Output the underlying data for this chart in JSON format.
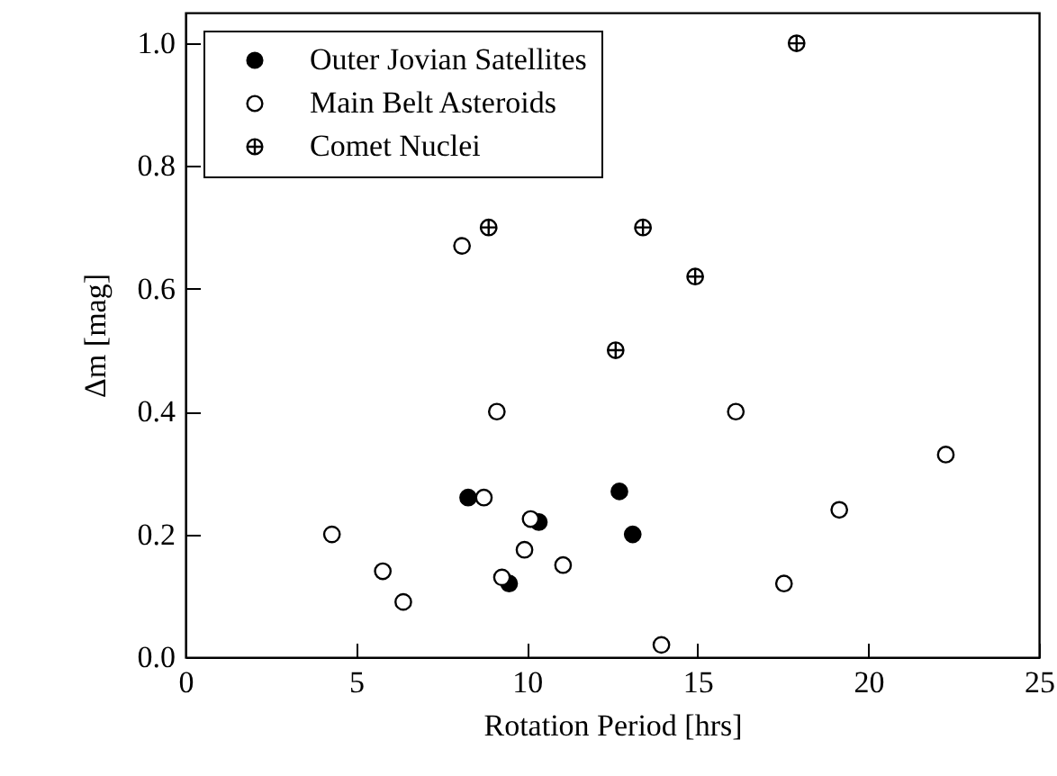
{
  "chart_data": {
    "type": "scatter",
    "xlabel": "Rotation Period  [hrs]",
    "ylabel": "Δm  [mag]",
    "xlim": [
      0,
      25
    ],
    "xticks": [
      0,
      5,
      10,
      15,
      20,
      25
    ],
    "ylim": [
      0,
      1.05
    ],
    "yticks": [
      {
        "value": 0,
        "label": "0.0"
      },
      0.2,
      0.4,
      0.6,
      0.8,
      {
        "value": 1,
        "label": "1.0"
      }
    ],
    "grid": false,
    "legend": "top left",
    "series": [
      {
        "name": "Outer Jovian Satellites",
        "color": "#000000",
        "marker": "circle",
        "x": [
          8.28,
          10.35,
          9.48,
          12.71,
          13.1
        ],
        "values": [
          0.26,
          0.22,
          0.12,
          0.27,
          0.2
        ]
      },
      {
        "name": "Main Belt Asteroids",
        "color": "#ffffff",
        "marker": "circle",
        "x": [
          4.29,
          5.78,
          6.38,
          9.12,
          8.74,
          10.11,
          9.93,
          9.27,
          11.06,
          13.94,
          8.1,
          16.12,
          22.27,
          19.15,
          17.53
        ],
        "values": [
          0.2,
          0.14,
          0.09,
          0.4,
          0.26,
          0.225,
          0.175,
          0.13,
          0.15,
          0.02,
          0.67,
          0.4,
          0.33,
          0.24,
          0.12
        ]
      },
      {
        "name": "Comet Nuclei",
        "color": "#ffffff",
        "marker": "cross",
        "x": [
          8.88,
          13.4,
          14.93,
          12.6,
          17.9
        ],
        "values": [
          0.7,
          0.7,
          0.62,
          0.5,
          1.0
        ]
      }
    ]
  }
}
